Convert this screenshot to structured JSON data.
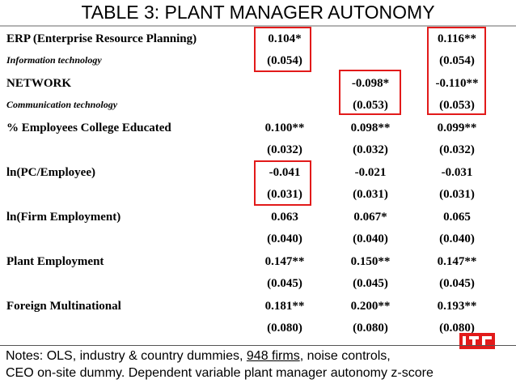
{
  "title": "TABLE 3: PLANT MANAGER AUTONOMY",
  "rows": [
    {
      "label": "ERP (Enterprise Resource Planning)",
      "sub": "Information technology",
      "c1": "0.104*",
      "c1se": "(0.054)",
      "c2": "",
      "c2se": "",
      "c3": "0.116**",
      "c3se": "(0.054)"
    },
    {
      "label": "NETWORK",
      "sub": "Communication technology",
      "c1": "",
      "c1se": "",
      "c2": "-0.098*",
      "c2se": "(0.053)",
      "c3": "-0.110**",
      "c3se": "(0.053)"
    },
    {
      "label": "% Employees College Educated",
      "sub": "",
      "c1": "0.100**",
      "c1se": "(0.032)",
      "c2": "0.098**",
      "c2se": "(0.032)",
      "c3": "0.099**",
      "c3se": "(0.032)"
    },
    {
      "label": "ln(PC/Employee)",
      "sub": "",
      "c1": "-0.041",
      "c1se": "(0.031)",
      "c2": "-0.021",
      "c2se": "(0.031)",
      "c3": "-0.031",
      "c3se": "(0.031)"
    },
    {
      "label": "ln(Firm Employment)",
      "sub": "",
      "c1": "0.063",
      "c1se": "(0.040)",
      "c2": "0.067*",
      "c2se": "(0.040)",
      "c3": "0.065",
      "c3se": "(0.040)"
    },
    {
      "label": "Plant Employment",
      "sub": "",
      "c1": "0.147**",
      "c1se": "(0.045)",
      "c2": "0.150**",
      "c2se": "(0.045)",
      "c3": "0.147**",
      "c3se": "(0.045)"
    },
    {
      "label": "Foreign Multinational",
      "sub": "",
      "c1": "0.181**",
      "c1se": "(0.080)",
      "c2": "0.200**",
      "c2se": "(0.080)",
      "c3": "0.193**",
      "c3se": "(0.080)"
    }
  ],
  "notes": {
    "line1_pre": "Notes: OLS, industry & country dummies, ",
    "line1_link": "948 firms",
    "line1_post": ", noise controls,",
    "line2": "CEO on-site dummy. Dependent variable plant manager autonomy z-score"
  },
  "highlight_color": "#e21a1a",
  "logo": "red-logo-icon"
}
